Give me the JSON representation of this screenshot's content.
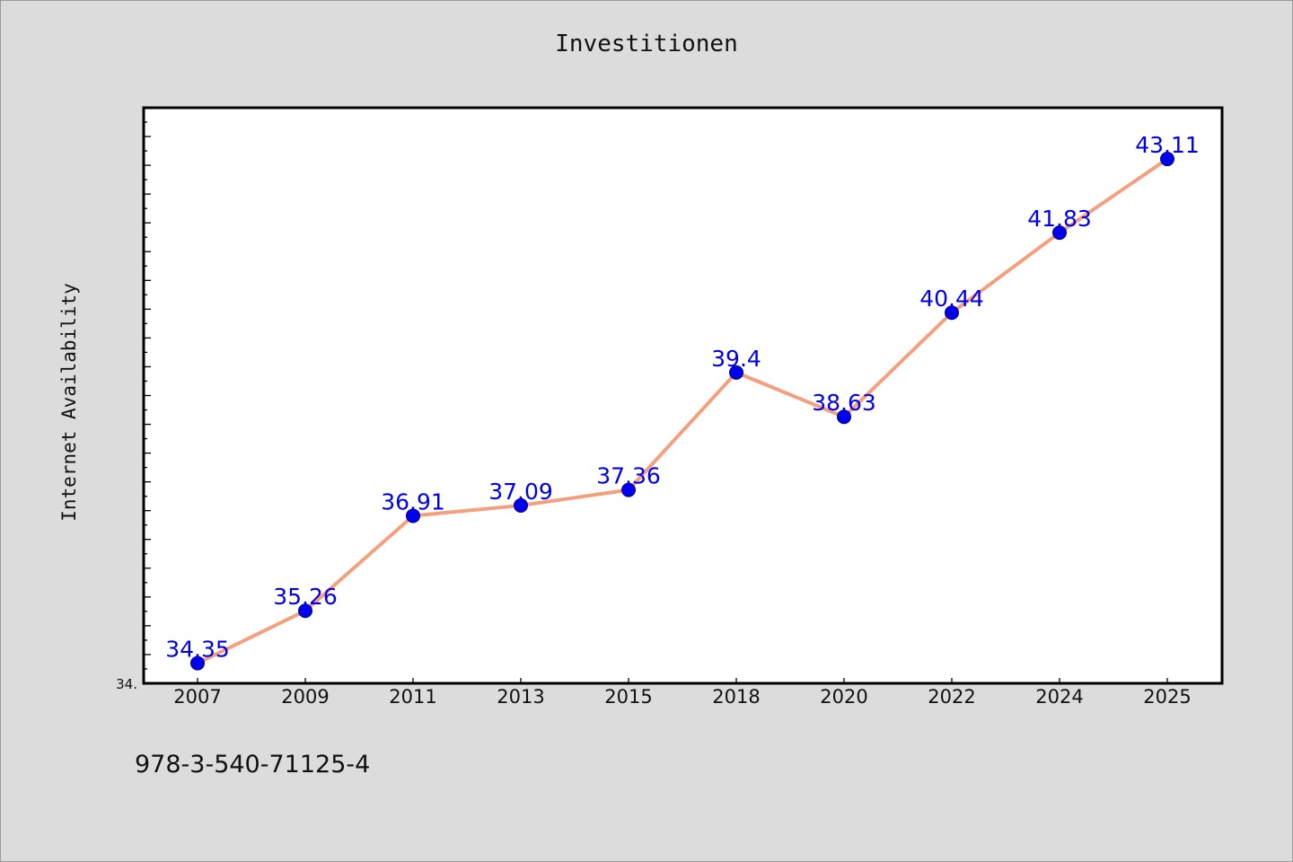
{
  "chart_data": {
    "type": "line",
    "title": "Investitionen",
    "ylabel": "Internet Availability",
    "xlabel": "",
    "categories": [
      "2007",
      "2009",
      "2011",
      "2013",
      "2015",
      "2018",
      "2020",
      "2022",
      "2024",
      "2025"
    ],
    "series": [
      {
        "values": [
          34.35,
          35.26,
          36.91,
          37.09,
          37.36,
          39.4,
          38.63,
          40.44,
          41.83,
          43.11
        ]
      }
    ],
    "data_labels": [
      "34.35",
      "35.26",
      "36.91",
      "37.09",
      "37.36",
      "39.4",
      "38.63",
      "40.44",
      "41.83",
      "43.11"
    ],
    "ylim": [
      34.0,
      44.0
    ],
    "ytick_labels": [
      "34."
    ],
    "grid": false,
    "legend": "none",
    "colors": {
      "line": "#f4a07e",
      "marker": "#0000ee",
      "label": "#0000ee",
      "background": "#dcdcdc",
      "plot_background": "#ffffff"
    }
  },
  "footer": {
    "isbn": "978-3-540-71125-4"
  }
}
